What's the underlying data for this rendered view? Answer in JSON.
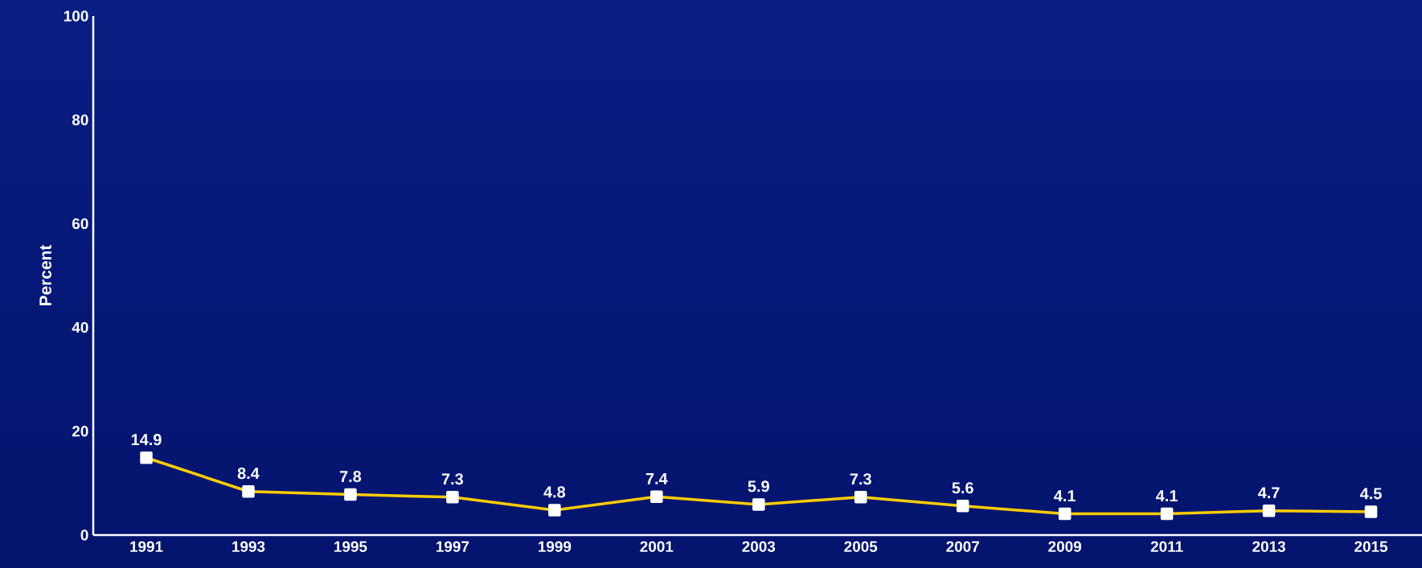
{
  "chart_data": {
    "type": "line",
    "ylabel": "Percent",
    "categories": [
      "1991",
      "1993",
      "1995",
      "1997",
      "1999",
      "2001",
      "2003",
      "2005",
      "2007",
      "2009",
      "2011",
      "2013",
      "2015"
    ],
    "series": [
      {
        "color": "#ffcc00",
        "values": [
          14.9,
          8.4,
          7.8,
          7.3,
          4.8,
          7.4,
          5.9,
          7.3,
          5.6,
          4.1,
          4.1,
          4.7,
          4.5
        ]
      }
    ],
    "ylim": [
      0,
      100
    ],
    "yticks": [
      0,
      20,
      40,
      60,
      80,
      100
    ],
    "marker": "square",
    "line_style": "solid",
    "data_labels": true,
    "grid": false,
    "legend": false
  }
}
